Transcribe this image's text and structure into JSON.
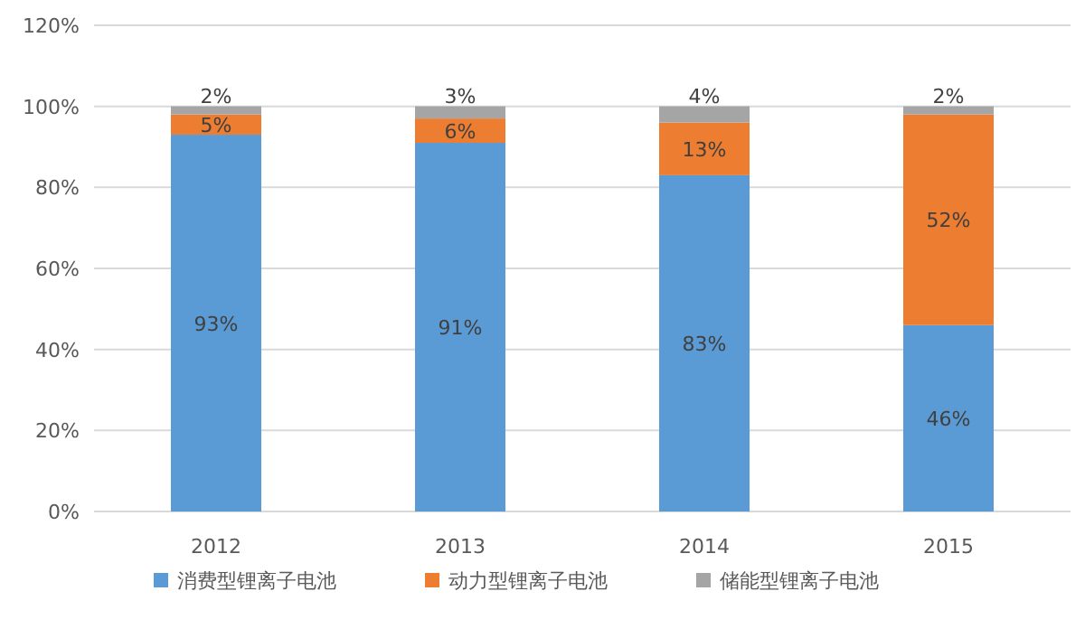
{
  "chart_data": {
    "type": "bar",
    "stacked": true,
    "categories": [
      "2012",
      "2013",
      "2014",
      "2015"
    ],
    "series": [
      {
        "name": "消费型锂离子电池",
        "color": "#5b9bd5",
        "values": [
          93,
          91,
          83,
          46
        ],
        "value_labels": [
          "93%",
          "91%",
          "83%",
          "46%"
        ]
      },
      {
        "name": "动力型锂离子电池",
        "color": "#ed7d31",
        "values": [
          5,
          6,
          13,
          52
        ],
        "value_labels": [
          "5%",
          "6%",
          "13%",
          "52%"
        ]
      },
      {
        "name": "储能型锂离子电池",
        "color": "#a5a5a5",
        "values": [
          2,
          3,
          4,
          2
        ],
        "value_labels": [
          "2%",
          "3%",
          "4%",
          "2%"
        ]
      }
    ],
    "ylim": [
      0,
      120
    ],
    "yticks": [
      {
        "value": 0,
        "label": "0%"
      },
      {
        "value": 20,
        "label": "20%"
      },
      {
        "value": 40,
        "label": "40%"
      },
      {
        "value": 60,
        "label": "60%"
      },
      {
        "value": 80,
        "label": "80%"
      },
      {
        "value": 100,
        "label": "100%"
      },
      {
        "value": 120,
        "label": "120%"
      }
    ],
    "grid": "y",
    "legend": "bottom"
  }
}
